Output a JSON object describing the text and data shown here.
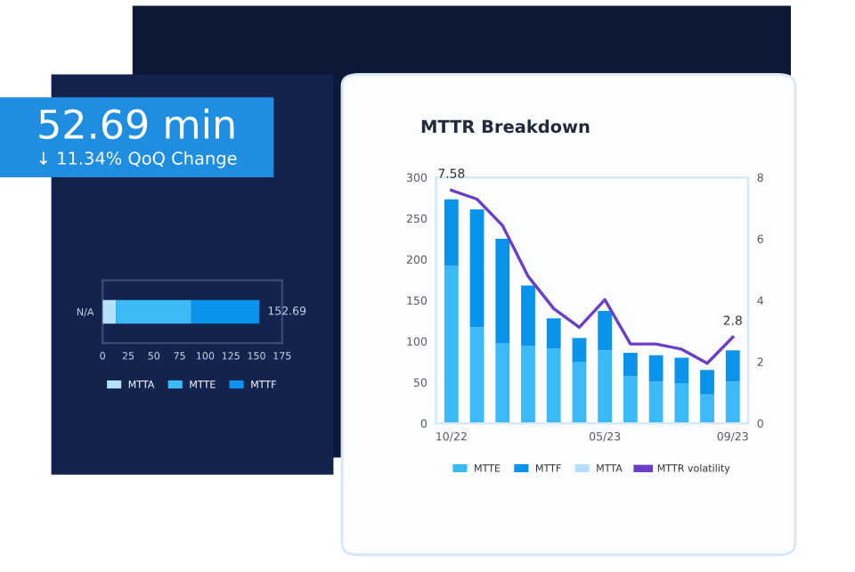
{
  "chart_data": [
    {
      "type": "other",
      "annotations": [
        "52.69 min",
        "↓ 11.34% QoQ Change"
      ]
    },
    {
      "type": "bar",
      "orientation": "horizontal",
      "stacked": true,
      "categories": [
        "N/A"
      ],
      "series": [
        {
          "name": "MTTA",
          "color": "#b6e0fa",
          "values": [
            13
          ]
        },
        {
          "name": "MTTE",
          "color": "#3cb9f7",
          "values": [
            73.5
          ]
        },
        {
          "name": "MTTF",
          "color": "#0a93ea",
          "values": [
            66.19
          ]
        }
      ],
      "totals": [
        "152.69"
      ],
      "xlim": [
        0,
        175
      ],
      "xticks": [
        0,
        25,
        50,
        75,
        100,
        125,
        150,
        175
      ],
      "legend": "bottom"
    },
    {
      "type": "bar",
      "title": "MTTR Breakdown",
      "stacked": true,
      "categories": [
        "10/22",
        null,
        null,
        null,
        null,
        null,
        "05/23",
        null,
        null,
        null,
        null,
        "09/23"
      ],
      "series": [
        {
          "name": "MTTE",
          "color": "#3cb9f7",
          "values": [
            192,
            117,
            98,
            94,
            91,
            75,
            89,
            57,
            51,
            49,
            35,
            51
          ]
        },
        {
          "name": "MTTF",
          "color": "#0a93ea",
          "values": [
            81,
            144,
            127,
            74,
            37,
            29,
            48,
            29,
            32,
            31,
            30,
            38
          ]
        },
        {
          "name": "MTTA",
          "color": "#b6e0fa",
          "values": [
            null,
            null,
            null,
            null,
            null,
            null,
            null,
            null,
            null,
            null,
            null,
            null
          ]
        },
        {
          "name": "MTTR volatility",
          "color": "#6a3fc6",
          "type": "line",
          "axis": "y2",
          "values": [
            7.58,
            7.29,
            6.43,
            4.78,
            3.73,
            3.12,
            4.02,
            2.58,
            2.58,
            2.41,
            1.95,
            2.8
          ],
          "value_labels": [
            "7.58",
            null,
            null,
            null,
            null,
            null,
            null,
            null,
            null,
            null,
            null,
            "2.8"
          ]
        }
      ],
      "ylim": [
        0,
        300
      ],
      "yticks": [
        0,
        50,
        100,
        150,
        200,
        250,
        300
      ],
      "y2lim": [
        0,
        8
      ],
      "y2ticks": [
        0,
        2,
        4,
        6,
        8
      ],
      "legend": "bottom"
    }
  ]
}
